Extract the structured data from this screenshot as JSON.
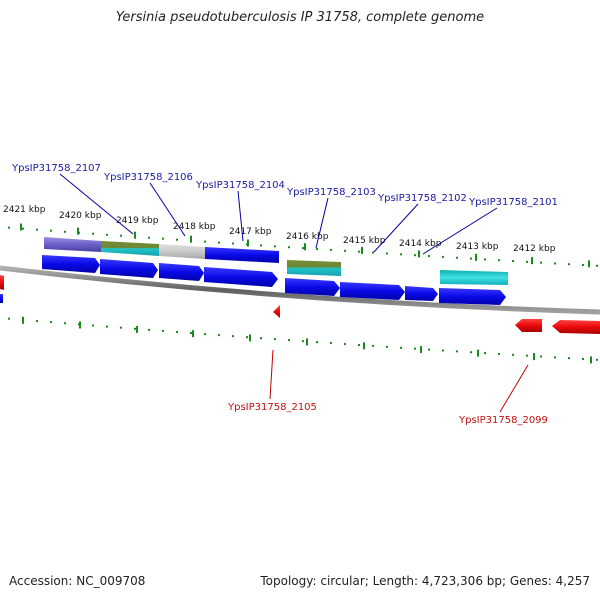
{
  "title": "Yersinia pseudotuberculosis IP 31758, complete genome",
  "footer": {
    "accession": "Accession: NC_009708",
    "summary": "Topology: circular; Length: 4,723,306 bp; Genes: 4,257"
  },
  "ticks": [
    {
      "label": "2421 kbp"
    },
    {
      "label": "2420 kbp"
    },
    {
      "label": "2419 kbp"
    },
    {
      "label": "2418 kbp"
    },
    {
      "label": "2417 kbp"
    },
    {
      "label": "2416 kbp"
    },
    {
      "label": "2415 kbp"
    },
    {
      "label": "2414 kbp"
    },
    {
      "label": "2413 kbp"
    },
    {
      "label": "2412 kbp"
    }
  ],
  "forward_genes": [
    {
      "label": "YpsIP31758_2107"
    },
    {
      "label": "YpsIP31758_2106"
    },
    {
      "label": "YpsIP31758_2104"
    },
    {
      "label": "YpsIP31758_2103"
    },
    {
      "label": "YpsIP31758_2102"
    },
    {
      "label": "YpsIP31758_2101"
    }
  ],
  "reverse_genes": [
    {
      "label": "YpsIP31758_2105"
    },
    {
      "label": "YpsIP31758_2099"
    }
  ],
  "colors": {
    "forward": "#1010e0",
    "reverse": "#e01010",
    "tick": "#1a8a1a",
    "backbone": "#808080",
    "forward_label": "#1a1aa0",
    "reverse_label": "#c01010"
  }
}
